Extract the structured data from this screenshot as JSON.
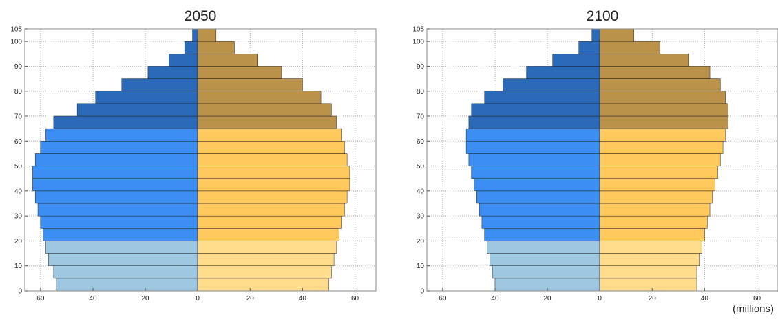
{
  "unit_label": "(millions)",
  "colors": {
    "male_young": "#9ec8e2",
    "male_working": "#3d8ef2",
    "male_old": "#2a6ab8",
    "female_young": "#ffdb8c",
    "female_working": "#ffc95e",
    "female_old": "#bb924a",
    "grid": "#aaaaaa",
    "edge": "#222222"
  },
  "chart_data": [
    {
      "type": "bar",
      "title": "2050",
      "orientation": "horizontal-pyramid",
      "age_groups": [
        "0",
        "5",
        "10",
        "15",
        "20",
        "25",
        "30",
        "35",
        "40",
        "45",
        "50",
        "55",
        "60",
        "65",
        "70",
        "75",
        "80",
        "85",
        "90",
        "95",
        "100"
      ],
      "ylim": [
        0,
        105
      ],
      "yticks": [
        0,
        10,
        20,
        30,
        40,
        50,
        60,
        70,
        80,
        90,
        100,
        105
      ],
      "xlim": [
        -66,
        68
      ],
      "xticks": [
        -60,
        -40,
        -20,
        0,
        20,
        40,
        60
      ],
      "xtick_labels": [
        "60",
        "40",
        "20",
        "0",
        "20",
        "40",
        "60"
      ],
      "grid": true,
      "series": [
        {
          "side": "left",
          "values": [
            54,
            55,
            57,
            58,
            59,
            60,
            61,
            62,
            63,
            63,
            62,
            60,
            58,
            55,
            46,
            39,
            29,
            19,
            11,
            5,
            2
          ]
        },
        {
          "side": "right",
          "values": [
            50,
            51,
            52,
            53,
            54,
            55,
            56,
            57,
            58,
            58,
            57,
            56,
            55,
            53,
            51,
            47,
            40,
            32,
            23,
            14,
            7
          ]
        }
      ]
    },
    {
      "type": "bar",
      "title": "2100",
      "orientation": "horizontal-pyramid",
      "age_groups": [
        "0",
        "5",
        "10",
        "15",
        "20",
        "25",
        "30",
        "35",
        "40",
        "45",
        "50",
        "55",
        "60",
        "65",
        "70",
        "75",
        "80",
        "85",
        "90",
        "95",
        "100"
      ],
      "ylim": [
        0,
        105
      ],
      "yticks": [
        0,
        10,
        20,
        30,
        40,
        50,
        60,
        70,
        80,
        90,
        100,
        105
      ],
      "xlim": [
        -66,
        68
      ],
      "xticks": [
        -60,
        -40,
        -20,
        0,
        20,
        40,
        60
      ],
      "xtick_labels": [
        "60",
        "40",
        "20",
        "0",
        "20",
        "40",
        "60"
      ],
      "grid": true,
      "series": [
        {
          "side": "left",
          "values": [
            40,
            41,
            42,
            43,
            44,
            45,
            46,
            47,
            48,
            49,
            50,
            51,
            51,
            50,
            49,
            44,
            37,
            28,
            18,
            8,
            3
          ]
        },
        {
          "side": "right",
          "values": [
            37,
            37,
            38,
            39,
            40,
            41,
            42,
            43,
            44,
            45,
            46,
            47,
            48,
            49,
            49,
            48,
            46,
            42,
            34,
            23,
            13
          ]
        }
      ]
    }
  ]
}
